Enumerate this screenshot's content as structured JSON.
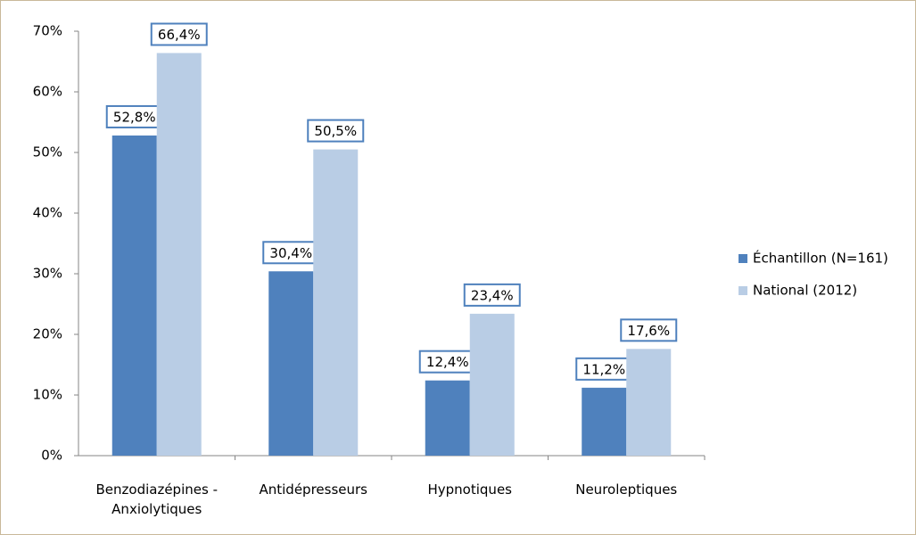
{
  "chart_data": {
    "type": "bar",
    "categories": [
      "Benzodiazépines - Anxiolytiques",
      "Antidépresseurs",
      "Hypnotiques",
      "Neuroleptiques"
    ],
    "series": [
      {
        "name": "Échantillon (N=161)",
        "color": "#4f81bd",
        "values": [
          52.8,
          30.4,
          12.4,
          11.2
        ],
        "value_labels": [
          "52,8%",
          "30,4%",
          "12,4%",
          "11,2%"
        ]
      },
      {
        "name": "National (2012)",
        "color": "#b9cde5",
        "values": [
          66.4,
          50.5,
          23.4,
          17.6
        ],
        "value_labels": [
          "66,4%",
          "50,5%",
          "23,4%",
          "17,6%"
        ]
      }
    ],
    "ylim": [
      0,
      70
    ],
    "yticks": [
      {
        "value": 0,
        "label": "0%"
      },
      {
        "value": 10,
        "label": "10%"
      },
      {
        "value": 20,
        "label": "20%"
      },
      {
        "value": 30,
        "label": "30%"
      },
      {
        "value": 40,
        "label": "40%"
      },
      {
        "value": 50,
        "label": "50%"
      },
      {
        "value": 60,
        "label": "60%"
      },
      {
        "value": 70,
        "label": "70%"
      }
    ],
    "legend": "right"
  }
}
